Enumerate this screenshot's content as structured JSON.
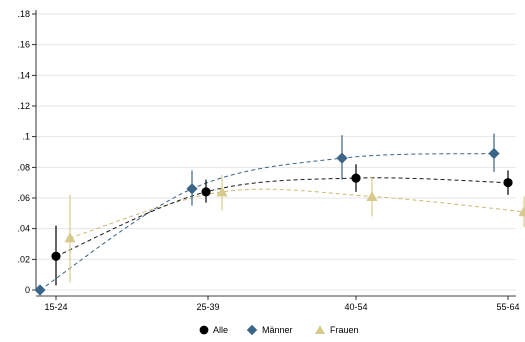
{
  "chart_data": {
    "type": "line",
    "categories": [
      "15-24",
      "25-39",
      "40-54",
      "55-64"
    ],
    "ylim": [
      0,
      0.18
    ],
    "yticks": [
      {
        "value": 0,
        "label": "0"
      },
      {
        "value": 0.02,
        "label": ".02"
      },
      {
        "value": 0.04,
        "label": ".04"
      },
      {
        "value": 0.06,
        "label": ".06"
      },
      {
        "value": 0.08,
        "label": ".08"
      },
      {
        "value": 0.1,
        "label": ".1"
      },
      {
        "value": 0.12,
        "label": ".12"
      },
      {
        "value": 0.14,
        "label": ".14"
      },
      {
        "value": 0.16,
        "label": ".16"
      },
      {
        "value": 0.18,
        "label": ".18"
      }
    ],
    "grid": "horizontal",
    "legend_position": "bottom",
    "series": [
      {
        "name": "Alle",
        "marker": "circle",
        "color": "#000000",
        "line_color": "#1a1a1a",
        "values": [
          0.022,
          0.064,
          0.073,
          0.07
        ],
        "ci_low": [
          0.003,
          0.057,
          0.064,
          0.062
        ],
        "ci_high": [
          0.042,
          0.072,
          0.082,
          0.078
        ]
      },
      {
        "name": "Männer",
        "marker": "diamond",
        "color": "#3b6587",
        "line_color": "#3b6587",
        "values": [
          0.0,
          0.066,
          0.086,
          0.089
        ],
        "ci_low": [
          0.0,
          0.055,
          0.072,
          0.077
        ],
        "ci_high": [
          0.0,
          0.078,
          0.101,
          0.102
        ]
      },
      {
        "name": "Frauen",
        "marker": "triangle",
        "color": "#d7ca8c",
        "line_color": "#c9ba72",
        "values": [
          0.034,
          0.064,
          0.061,
          0.051
        ],
        "ci_low": [
          0.005,
          0.052,
          0.048,
          0.041
        ],
        "ci_high": [
          0.062,
          0.075,
          0.074,
          0.061
        ]
      }
    ]
  }
}
